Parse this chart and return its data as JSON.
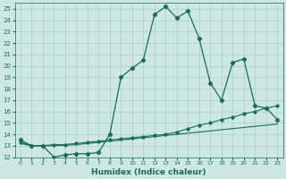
{
  "xlabel": "Humidex (Indice chaleur)",
  "background_color": "#cce8e0",
  "grid_color": "#aacfc8",
  "line_color": "#1a6b5a",
  "xlim": [
    -0.5,
    23.5
  ],
  "ylim": [
    12,
    25.5
  ],
  "xticks": [
    0,
    1,
    2,
    3,
    4,
    5,
    6,
    7,
    8,
    9,
    10,
    11,
    12,
    13,
    14,
    15,
    16,
    17,
    18,
    19,
    20,
    21,
    22,
    23
  ],
  "yticks": [
    12,
    13,
    14,
    15,
    16,
    17,
    18,
    19,
    20,
    21,
    22,
    23,
    24,
    25
  ],
  "series1_x": [
    0,
    1,
    2,
    3,
    4,
    5,
    6,
    7,
    8,
    9,
    10,
    11,
    12,
    13,
    14,
    15,
    16,
    17,
    18,
    19,
    20,
    21,
    22,
    23
  ],
  "series1_y": [
    13.5,
    13.0,
    13.0,
    12.0,
    12.2,
    12.3,
    12.3,
    12.4,
    14.0,
    19.0,
    19.8,
    20.5,
    24.5,
    25.2,
    24.2,
    24.8,
    22.4,
    18.5,
    17.0,
    20.3,
    20.6,
    16.5,
    16.3,
    15.3
  ],
  "series2_x": [
    0,
    1,
    2,
    3,
    4,
    5,
    6,
    7,
    8,
    9,
    10,
    11,
    12,
    13,
    14,
    15,
    16,
    17,
    18,
    19,
    20,
    21,
    22,
    23
  ],
  "series2_y": [
    13.3,
    13.0,
    13.0,
    13.1,
    13.1,
    13.2,
    13.3,
    13.4,
    13.5,
    13.6,
    13.7,
    13.8,
    13.9,
    14.0,
    14.2,
    14.5,
    14.8,
    15.0,
    15.3,
    15.5,
    15.8,
    16.0,
    16.3,
    16.5
  ],
  "series3_x": [
    0,
    1,
    2,
    3,
    4,
    5,
    6,
    7,
    8,
    9,
    10,
    11,
    12,
    13,
    14,
    15,
    16,
    17,
    18,
    19,
    20,
    21,
    22,
    23
  ],
  "series3_y": [
    13.2,
    13.0,
    13.0,
    13.0,
    13.05,
    13.1,
    13.2,
    13.3,
    13.4,
    13.5,
    13.6,
    13.7,
    13.8,
    13.9,
    14.0,
    14.1,
    14.2,
    14.3,
    14.4,
    14.5,
    14.6,
    14.7,
    14.8,
    14.9
  ]
}
